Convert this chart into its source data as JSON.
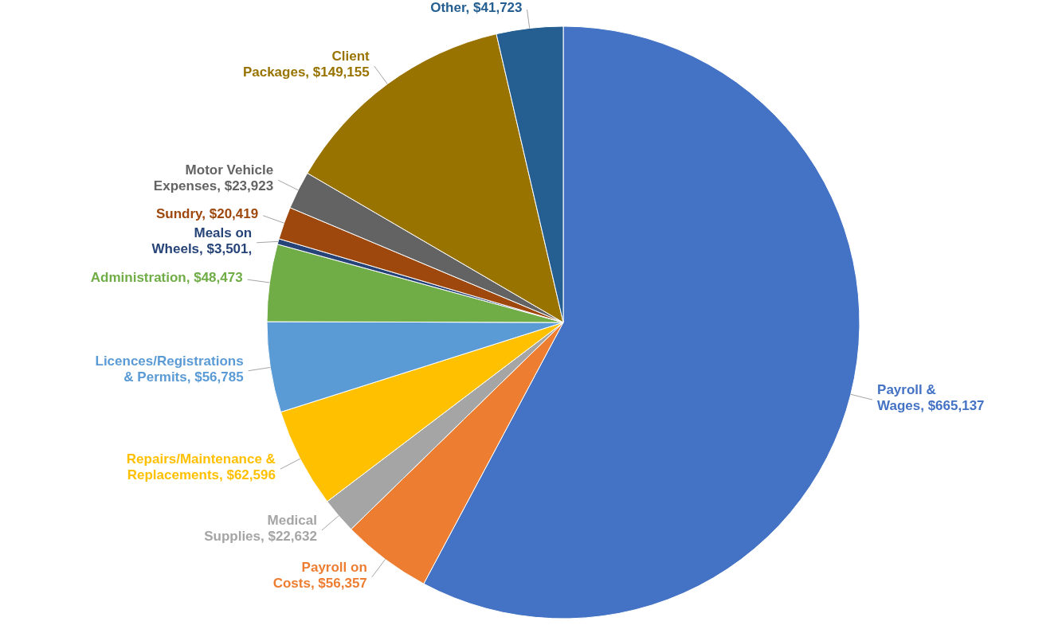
{
  "chart_data": {
    "type": "pie",
    "categories": [
      "Payroll & Wages",
      "Payroll on Costs",
      "Medical Supplies",
      "Repairs/Maintenance & Replacements",
      "Licences/Registrations & Permits",
      "Administration",
      "Meals on Wheels",
      "Sundry",
      "Motor Vehicle Expenses",
      "Client Packages",
      "Other"
    ],
    "values": [
      665137,
      56357,
      22632,
      62596,
      56785,
      48473,
      3501,
      20419,
      23923,
      149155,
      41723
    ],
    "value_labels": [
      "$665,137",
      "$56,357",
      "$22,632",
      "$62,596",
      "$56,785",
      "$48,473",
      "$3,501,",
      "$20,419",
      "$23,923",
      "$149,155",
      "$41,723"
    ],
    "colors": [
      "#4472c4",
      "#ed7d31",
      "#a5a5a5",
      "#ffc000",
      "#5b9bd5",
      "#70ad47",
      "#264478",
      "#9e480e",
      "#636363",
      "#997300",
      "#255e91"
    ]
  }
}
